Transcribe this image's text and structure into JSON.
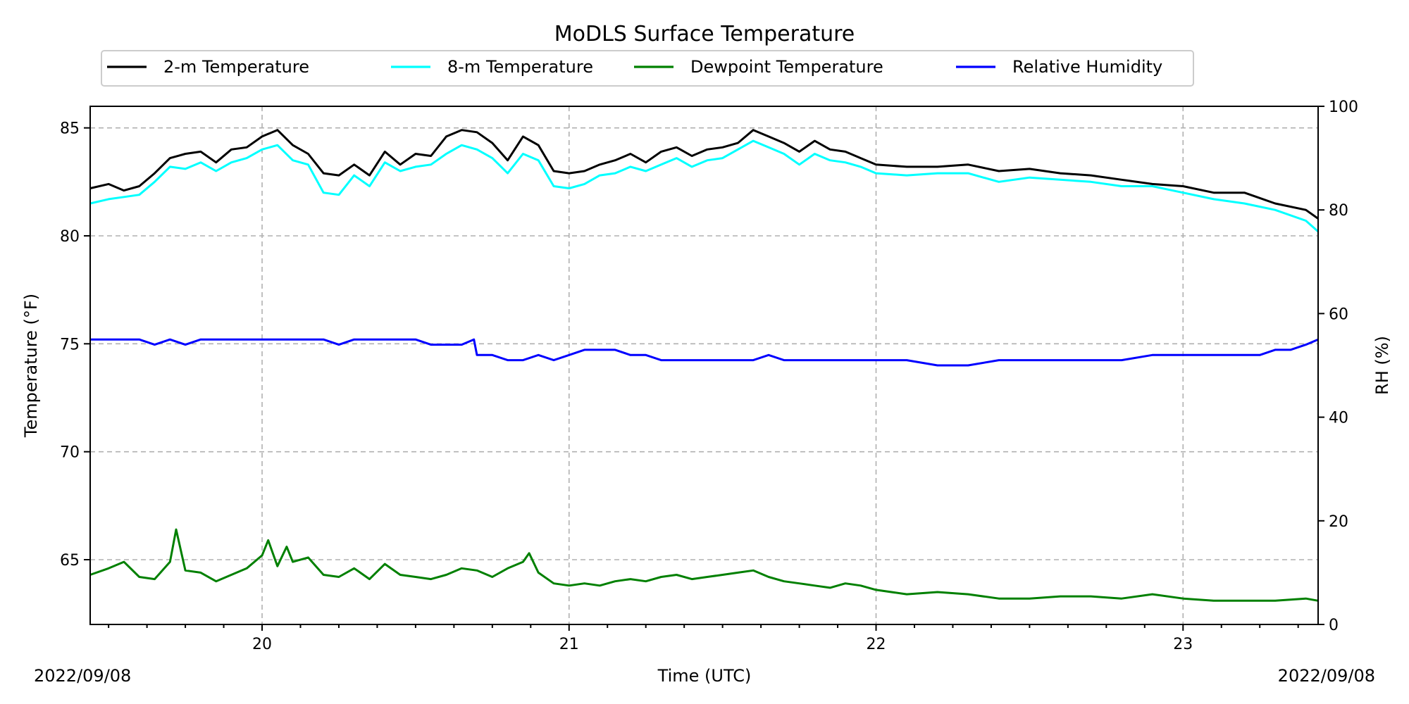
{
  "chart_data": {
    "type": "line",
    "title": "MoDLS Surface Temperature",
    "xlabel": "Time (UTC)",
    "ylabel": "Temperature ($^\\circ$F)",
    "ylabel_display": "Temperature (°F)",
    "y2label": "RH (%)",
    "xlim": [
      19.44,
      23.44
    ],
    "ylim": [
      62,
      86
    ],
    "y2lim": [
      0,
      100
    ],
    "x_ticks": [
      20,
      21,
      22,
      23
    ],
    "x_tick_labels": [
      "20",
      "21",
      "22",
      "23"
    ],
    "y_ticks": [
      65,
      70,
      75,
      80,
      85
    ],
    "y_tick_labels": [
      "65",
      "70",
      "75",
      "80",
      "85"
    ],
    "y2_ticks": [
      0,
      20,
      40,
      60,
      80,
      100
    ],
    "y2_tick_labels": [
      "0",
      "20",
      "40",
      "60",
      "80",
      "100"
    ],
    "start_date_label": "2022/09/08",
    "end_date_label": "2022/09/08",
    "grid": true,
    "legend_position": "top-center",
    "series": [
      {
        "name": "2-m Temperature",
        "color": "#000000",
        "axis": "left",
        "x": [
          19.44,
          19.5,
          19.55,
          19.6,
          19.65,
          19.7,
          19.75,
          19.8,
          19.85,
          19.9,
          19.95,
          20.0,
          20.05,
          20.1,
          20.15,
          20.2,
          20.25,
          20.3,
          20.35,
          20.4,
          20.45,
          20.5,
          20.55,
          20.6,
          20.65,
          20.7,
          20.75,
          20.8,
          20.85,
          20.9,
          20.95,
          21.0,
          21.05,
          21.1,
          21.15,
          21.2,
          21.25,
          21.3,
          21.35,
          21.4,
          21.45,
          21.5,
          21.55,
          21.6,
          21.65,
          21.7,
          21.75,
          21.8,
          21.85,
          21.9,
          21.95,
          22.0,
          22.1,
          22.2,
          22.3,
          22.4,
          22.5,
          22.6,
          22.7,
          22.8,
          22.9,
          23.0,
          23.1,
          23.2,
          23.3,
          23.4,
          23.44
        ],
        "y": [
          82.2,
          82.4,
          82.1,
          82.3,
          82.9,
          83.6,
          83.8,
          83.9,
          83.4,
          84.0,
          84.1,
          84.6,
          84.9,
          84.2,
          83.8,
          82.9,
          82.8,
          83.3,
          82.8,
          83.9,
          83.3,
          83.8,
          83.7,
          84.6,
          84.9,
          84.8,
          84.3,
          83.5,
          84.6,
          84.2,
          83.0,
          82.9,
          83.0,
          83.3,
          83.5,
          83.8,
          83.4,
          83.9,
          84.1,
          83.7,
          84.0,
          84.1,
          84.3,
          84.9,
          84.6,
          84.3,
          83.9,
          84.4,
          84.0,
          83.9,
          83.6,
          83.3,
          83.2,
          83.2,
          83.3,
          83.0,
          83.1,
          82.9,
          82.8,
          82.6,
          82.4,
          82.3,
          82.0,
          82.0,
          81.5,
          81.2,
          80.8
        ]
      },
      {
        "name": "8-m Temperature",
        "color": "#00ffff",
        "axis": "left",
        "x": [
          19.44,
          19.5,
          19.55,
          19.6,
          19.65,
          19.7,
          19.75,
          19.8,
          19.85,
          19.9,
          19.95,
          20.0,
          20.05,
          20.1,
          20.15,
          20.2,
          20.25,
          20.3,
          20.35,
          20.4,
          20.45,
          20.5,
          20.55,
          20.6,
          20.65,
          20.7,
          20.75,
          20.8,
          20.85,
          20.9,
          20.95,
          21.0,
          21.05,
          21.1,
          21.15,
          21.2,
          21.25,
          21.3,
          21.35,
          21.4,
          21.45,
          21.5,
          21.55,
          21.6,
          21.65,
          21.7,
          21.75,
          21.8,
          21.85,
          21.9,
          21.95,
          22.0,
          22.1,
          22.2,
          22.3,
          22.4,
          22.5,
          22.6,
          22.7,
          22.8,
          22.9,
          23.0,
          23.1,
          23.2,
          23.3,
          23.4,
          23.44
        ],
        "y": [
          81.5,
          81.7,
          81.8,
          81.9,
          82.5,
          83.2,
          83.1,
          83.4,
          83.0,
          83.4,
          83.6,
          84.0,
          84.2,
          83.5,
          83.3,
          82.0,
          81.9,
          82.8,
          82.3,
          83.4,
          83.0,
          83.2,
          83.3,
          83.8,
          84.2,
          84.0,
          83.6,
          82.9,
          83.8,
          83.5,
          82.3,
          82.2,
          82.4,
          82.8,
          82.9,
          83.2,
          83.0,
          83.3,
          83.6,
          83.2,
          83.5,
          83.6,
          84.0,
          84.4,
          84.1,
          83.8,
          83.3,
          83.8,
          83.5,
          83.4,
          83.2,
          82.9,
          82.8,
          82.9,
          82.9,
          82.5,
          82.7,
          82.6,
          82.5,
          82.3,
          82.3,
          82.0,
          81.7,
          81.5,
          81.2,
          80.7,
          80.2
        ]
      },
      {
        "name": "Dewpoint Temperature",
        "color": "#008000",
        "axis": "left",
        "x": [
          19.44,
          19.5,
          19.55,
          19.6,
          19.65,
          19.7,
          19.72,
          19.75,
          19.8,
          19.85,
          19.9,
          19.95,
          20.0,
          20.02,
          20.05,
          20.08,
          20.1,
          20.15,
          20.2,
          20.25,
          20.3,
          20.35,
          20.4,
          20.45,
          20.5,
          20.55,
          20.6,
          20.65,
          20.7,
          20.75,
          20.8,
          20.85,
          20.87,
          20.9,
          20.95,
          21.0,
          21.05,
          21.1,
          21.15,
          21.2,
          21.25,
          21.3,
          21.35,
          21.4,
          21.45,
          21.5,
          21.55,
          21.6,
          21.65,
          21.7,
          21.75,
          21.8,
          21.85,
          21.9,
          21.95,
          22.0,
          22.1,
          22.2,
          22.3,
          22.4,
          22.5,
          22.6,
          22.7,
          22.8,
          22.9,
          23.0,
          23.1,
          23.2,
          23.3,
          23.4,
          23.44
        ],
        "y": [
          64.3,
          64.6,
          64.9,
          64.2,
          64.1,
          64.9,
          66.4,
          64.5,
          64.4,
          64.0,
          64.3,
          64.6,
          65.2,
          65.9,
          64.7,
          65.6,
          64.9,
          65.1,
          64.3,
          64.2,
          64.6,
          64.1,
          64.8,
          64.3,
          64.2,
          64.1,
          64.3,
          64.6,
          64.5,
          64.2,
          64.6,
          64.9,
          65.3,
          64.4,
          63.9,
          63.8,
          63.9,
          63.8,
          64.0,
          64.1,
          64.0,
          64.2,
          64.3,
          64.1,
          64.2,
          64.3,
          64.4,
          64.5,
          64.2,
          64.0,
          63.9,
          63.8,
          63.7,
          63.9,
          63.8,
          63.6,
          63.4,
          63.5,
          63.4,
          63.2,
          63.2,
          63.3,
          63.3,
          63.2,
          63.4,
          63.2,
          63.1,
          63.1,
          63.1,
          63.2,
          63.1
        ]
      },
      {
        "name": "Relative Humidity",
        "color": "#0000ff",
        "axis": "right",
        "x": [
          19.44,
          19.5,
          19.55,
          19.6,
          19.65,
          19.7,
          19.75,
          19.8,
          19.85,
          19.9,
          19.95,
          20.0,
          20.05,
          20.1,
          20.15,
          20.2,
          20.25,
          20.3,
          20.35,
          20.4,
          20.45,
          20.5,
          20.55,
          20.6,
          20.65,
          20.69,
          20.7,
          20.75,
          20.8,
          20.85,
          20.9,
          20.95,
          21.0,
          21.05,
          21.1,
          21.15,
          21.2,
          21.25,
          21.3,
          21.35,
          21.4,
          21.45,
          21.5,
          21.55,
          21.6,
          21.65,
          21.7,
          21.75,
          21.8,
          21.85,
          21.9,
          21.95,
          22.0,
          22.1,
          22.2,
          22.3,
          22.4,
          22.5,
          22.6,
          22.7,
          22.8,
          22.9,
          23.0,
          23.1,
          23.2,
          23.25,
          23.3,
          23.35,
          23.4,
          23.44
        ],
        "y": [
          55,
          55,
          55,
          55,
          54,
          55,
          54,
          55,
          55,
          55,
          55,
          55,
          55,
          55,
          55,
          55,
          54,
          55,
          55,
          55,
          55,
          55,
          54,
          54,
          54,
          55,
          52,
          52,
          51,
          51,
          52,
          51,
          52,
          53,
          53,
          53,
          52,
          52,
          51,
          51,
          51,
          51,
          51,
          51,
          51,
          52,
          51,
          51,
          51,
          51,
          51,
          51,
          51,
          51,
          50,
          50,
          51,
          51,
          51,
          51,
          51,
          52,
          52,
          52,
          52,
          52,
          53,
          53,
          54,
          55
        ]
      }
    ]
  }
}
